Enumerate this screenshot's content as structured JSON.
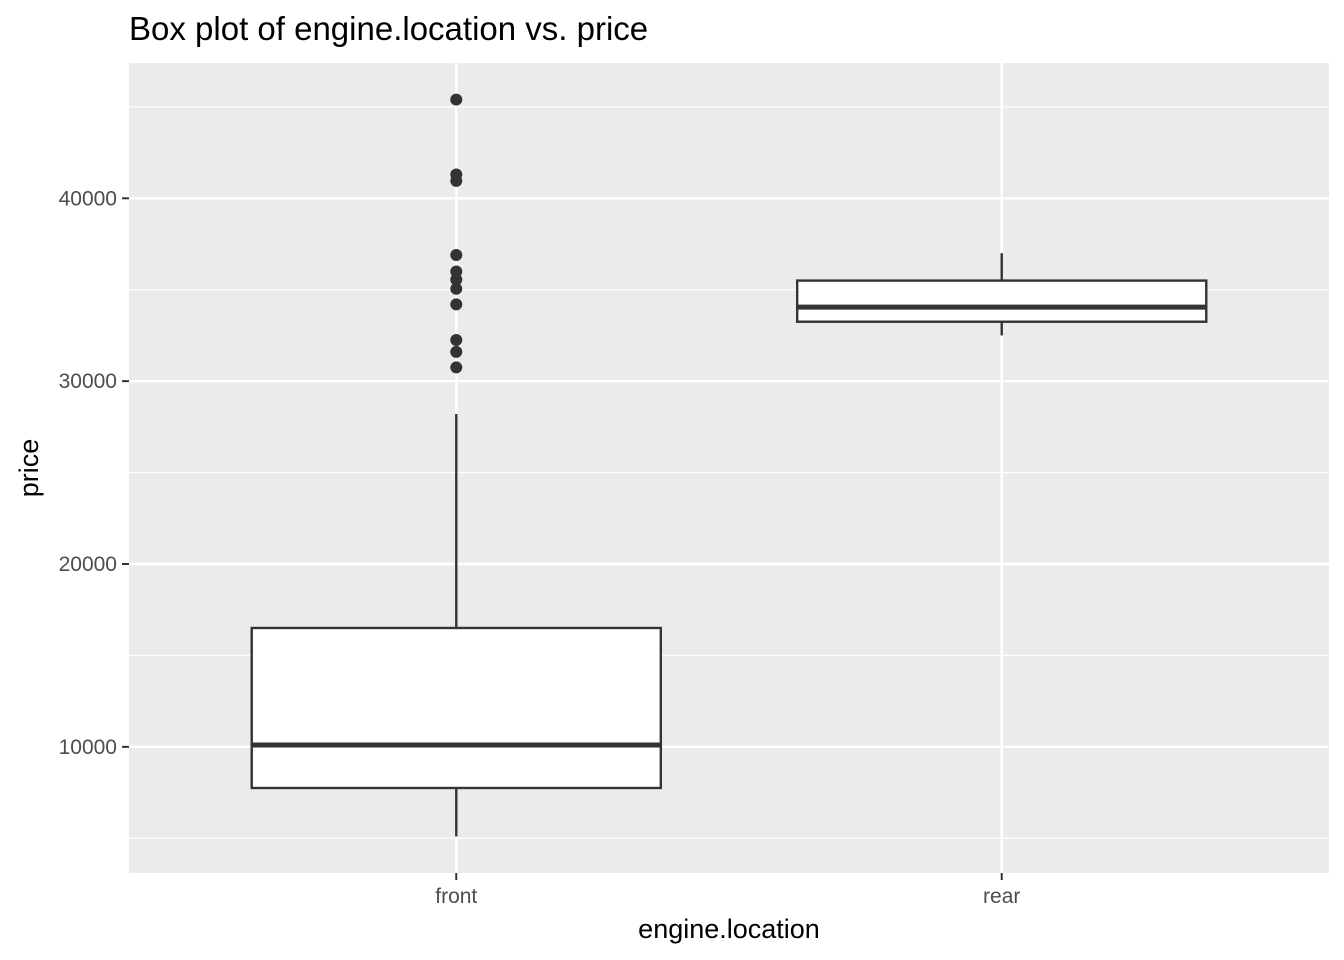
{
  "chart_data": {
    "type": "box",
    "title": "Box plot of engine.location vs. price",
    "xlabel": "engine.location",
    "ylabel": "price",
    "ylim": [
      3100,
      47400
    ],
    "yticks": [
      10000,
      20000,
      30000,
      40000
    ],
    "grid": true,
    "categories": [
      "front",
      "rear"
    ],
    "boxes": [
      {
        "category": "front",
        "q1": 7750,
        "median": 10100,
        "q3": 16500,
        "whisker_low": 5100,
        "whisker_high": 28200,
        "outliers": [
          30750,
          31600,
          32250,
          34200,
          35050,
          35550,
          36000,
          36900,
          40950,
          41300,
          45400
        ]
      },
      {
        "category": "rear",
        "q1": 33250,
        "median": 34050,
        "q3": 35500,
        "whisker_low": 32500,
        "whisker_high": 37000,
        "outliers": []
      }
    ]
  },
  "colors": {
    "panel_background": "#ebebeb",
    "grid": "#ffffff",
    "box_fill": "#ffffff",
    "box_stroke": "#333333",
    "outlier": "#333333",
    "tick_text": "#4d4d4d"
  }
}
